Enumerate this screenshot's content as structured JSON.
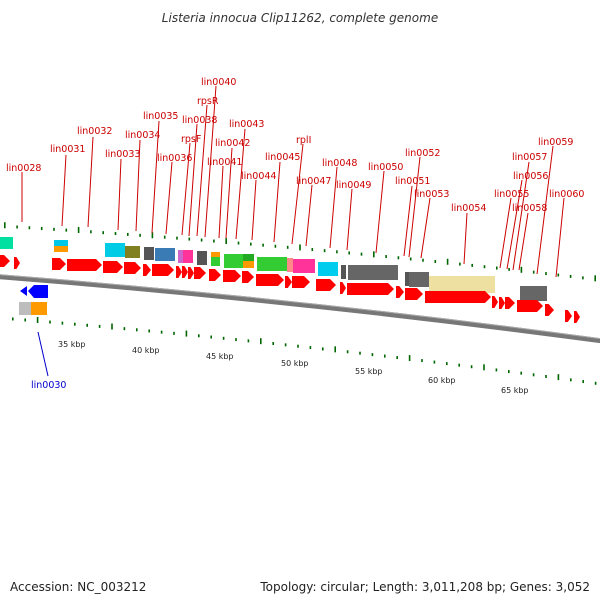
{
  "title": "Listeria innocua Clip11262, complete genome",
  "footer": {
    "accession": "Accession: NC_003212",
    "summary": "Topology: circular; Length: 3,011,208 bp; Genes: 3,052"
  },
  "scale_labels": [
    "35 kbp",
    "40 kbp",
    "45 kbp",
    "50 kbp",
    "55 kbp",
    "60 kbp",
    "65 kbp"
  ],
  "gene_labels": [
    "lin0028",
    "lin0030",
    "lin0031",
    "lin0032",
    "lin0033",
    "lin0034",
    "lin0035",
    "lin0036",
    "rpsF",
    "lin0038",
    "rpsR",
    "lin0040",
    "lin0041",
    "lin0042",
    "lin0043",
    "lin0044",
    "lin0045",
    "rplI",
    "lin0047",
    "lin0048",
    "lin0049",
    "lin0050",
    "lin0051",
    "lin0052",
    "lin0053",
    "lin0054",
    "lin0055",
    "lin0056",
    "lin0057",
    "lin0058",
    "lin0059",
    "lin0060"
  ],
  "colors": {
    "cds": "#ff0000",
    "reverse_cds": "#0000ff",
    "backbone": "#777777",
    "tick": "#006600",
    "label_forward": "#cc0000",
    "label_reverse": "#0000cc"
  }
}
